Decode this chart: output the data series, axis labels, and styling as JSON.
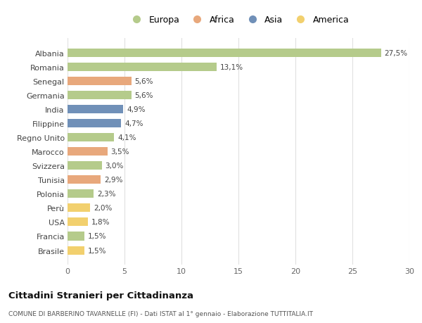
{
  "countries": [
    "Albania",
    "Romania",
    "Senegal",
    "Germania",
    "India",
    "Filippine",
    "Regno Unito",
    "Marocco",
    "Svizzera",
    "Tunisia",
    "Polonia",
    "Perù",
    "USA",
    "Francia",
    "Brasile"
  ],
  "values": [
    27.5,
    13.1,
    5.6,
    5.6,
    4.9,
    4.7,
    4.1,
    3.5,
    3.0,
    2.9,
    2.3,
    2.0,
    1.8,
    1.5,
    1.5
  ],
  "labels": [
    "27,5%",
    "13,1%",
    "5,6%",
    "5,6%",
    "4,9%",
    "4,7%",
    "4,1%",
    "3,5%",
    "3,0%",
    "2,9%",
    "2,3%",
    "2,0%",
    "1,8%",
    "1,5%",
    "1,5%"
  ],
  "colors": [
    "#b5cb8b",
    "#b5cb8b",
    "#e8a87c",
    "#b5cb8b",
    "#7090b8",
    "#7090b8",
    "#b5cb8b",
    "#e8a87c",
    "#b5cb8b",
    "#e8a87c",
    "#b5cb8b",
    "#f2d06e",
    "#f2d06e",
    "#b5cb8b",
    "#f2d06e"
  ],
  "legend_labels": [
    "Europa",
    "Africa",
    "Asia",
    "America"
  ],
  "legend_colors": [
    "#b5cb8b",
    "#e8a87c",
    "#7090b8",
    "#f2d06e"
  ],
  "title": "Cittadini Stranieri per Cittadinanza",
  "subtitle": "COMUNE DI BARBERINO TAVARNELLE (FI) - Dati ISTAT al 1° gennaio - Elaborazione TUTTITALIA.IT",
  "xlim": [
    0,
    30
  ],
  "xticks": [
    0,
    5,
    10,
    15,
    20,
    25,
    30
  ],
  "background_color": "#ffffff",
  "grid_color": "#e0e0e0",
  "bar_height": 0.6
}
